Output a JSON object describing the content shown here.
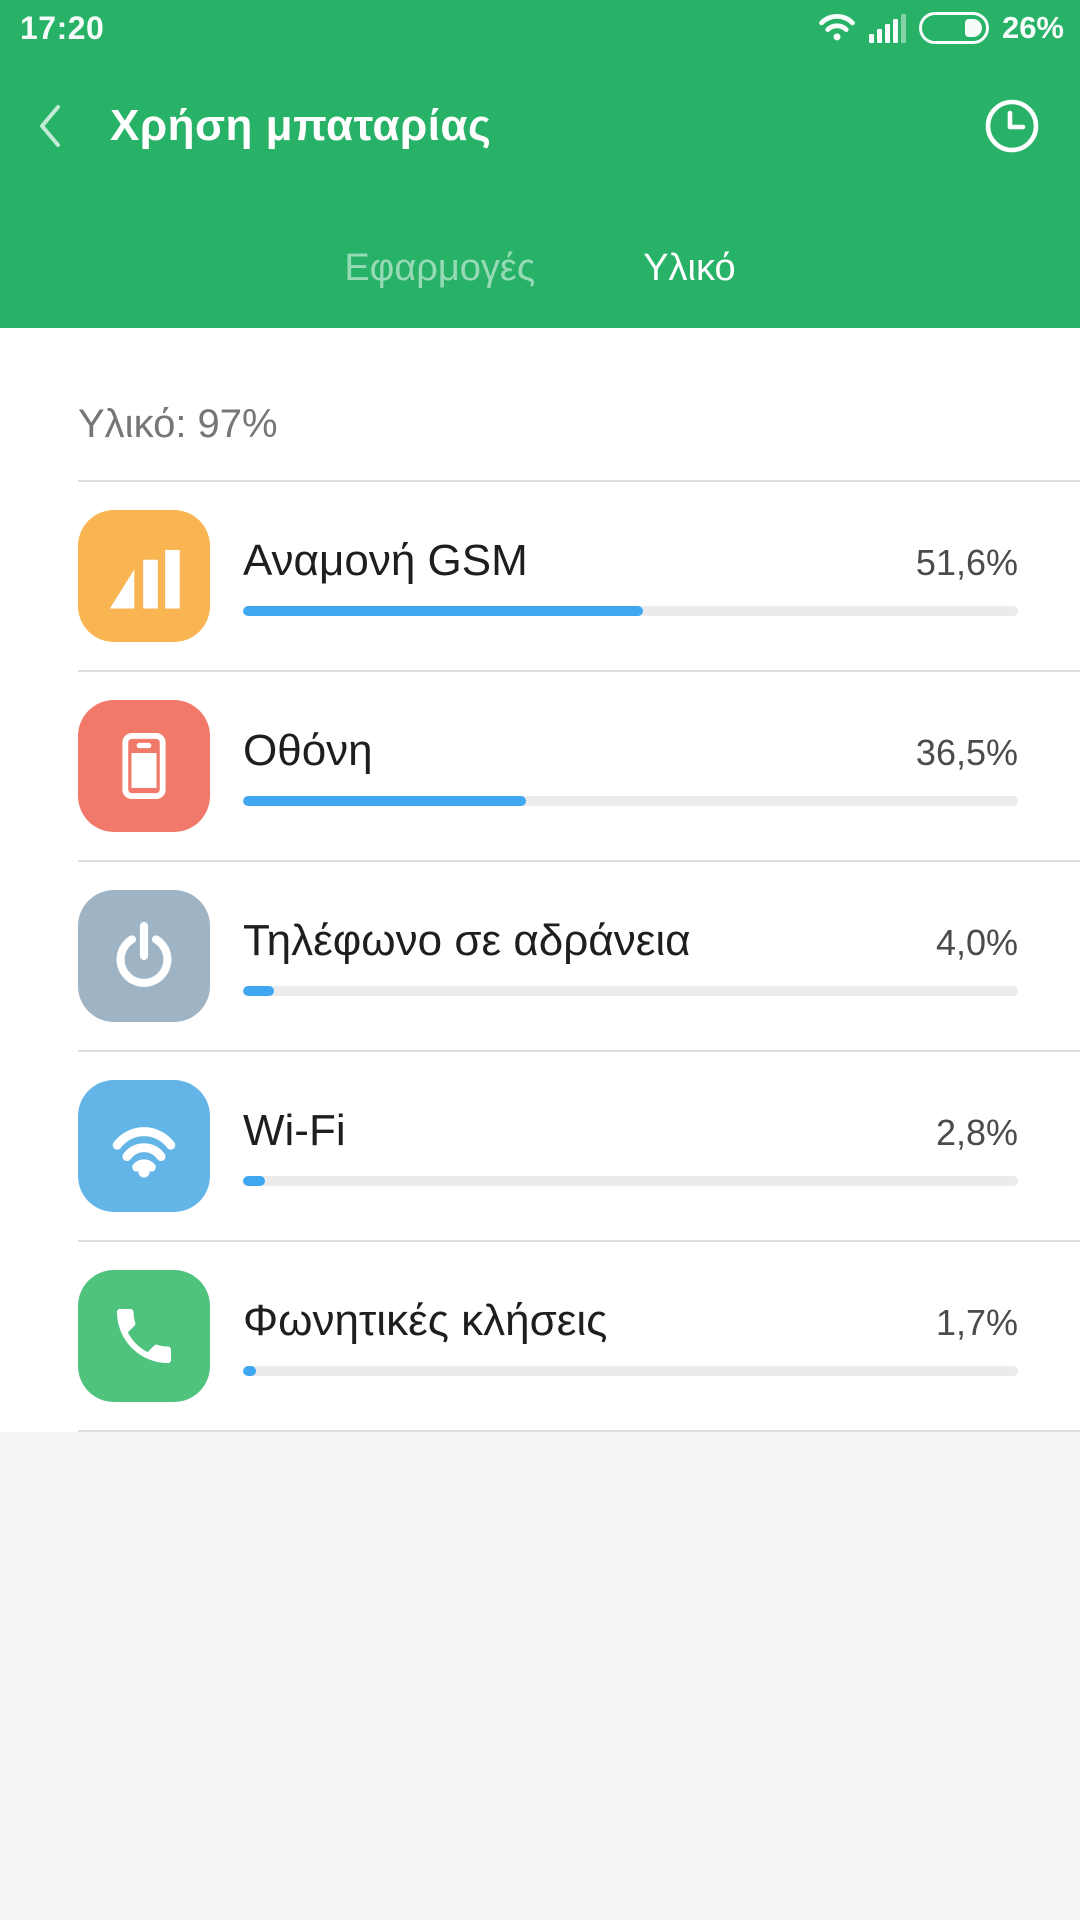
{
  "status_bar": {
    "time": "17:20",
    "battery_label": "26%",
    "battery_level": 26,
    "icons": [
      "wifi-icon",
      "signal-strength-icon",
      "battery-icon"
    ]
  },
  "header": {
    "title": "Χρήση μπαταρίας",
    "back_icon": "chevron-left-icon",
    "history_icon": "clock-icon"
  },
  "tabs": {
    "apps": "Εφαρμογές",
    "hardware": "Υλικό",
    "active": "Υλικό"
  },
  "section": {
    "label": "Υλικό: 97%"
  },
  "list": {
    "items": [
      {
        "name": "Αναμονή GSM",
        "percent_label": "51,6%",
        "percent": 51.6,
        "icon": "signal-bars-icon",
        "icon_color": "#f8b552"
      },
      {
        "name": "Οθόνη",
        "percent_label": "36,5%",
        "percent": 36.5,
        "icon": "screen-icon",
        "icon_color": "#f1796a"
      },
      {
        "name": "Τηλέφωνο σε αδράνεια",
        "percent_label": "4,0%",
        "percent": 4.0,
        "icon": "power-icon",
        "icon_color": "#9eb4c5"
      },
      {
        "name": "Wi-Fi",
        "percent_label": "2,8%",
        "percent": 2.8,
        "icon": "wifi-icon",
        "icon_color": "#64b5e7"
      },
      {
        "name": "Φωνητικές κλήσεις",
        "percent_label": "1,7%",
        "percent": 1.7,
        "icon": "phone-icon",
        "icon_color": "#4fc37e"
      }
    ]
  },
  "colors": {
    "header_green": "#27b267",
    "progress_blue": "#3fa6f2",
    "track_gray": "#ebebeb",
    "divider": "#dcdcdc",
    "footer_bg": "#f4f4f4"
  }
}
